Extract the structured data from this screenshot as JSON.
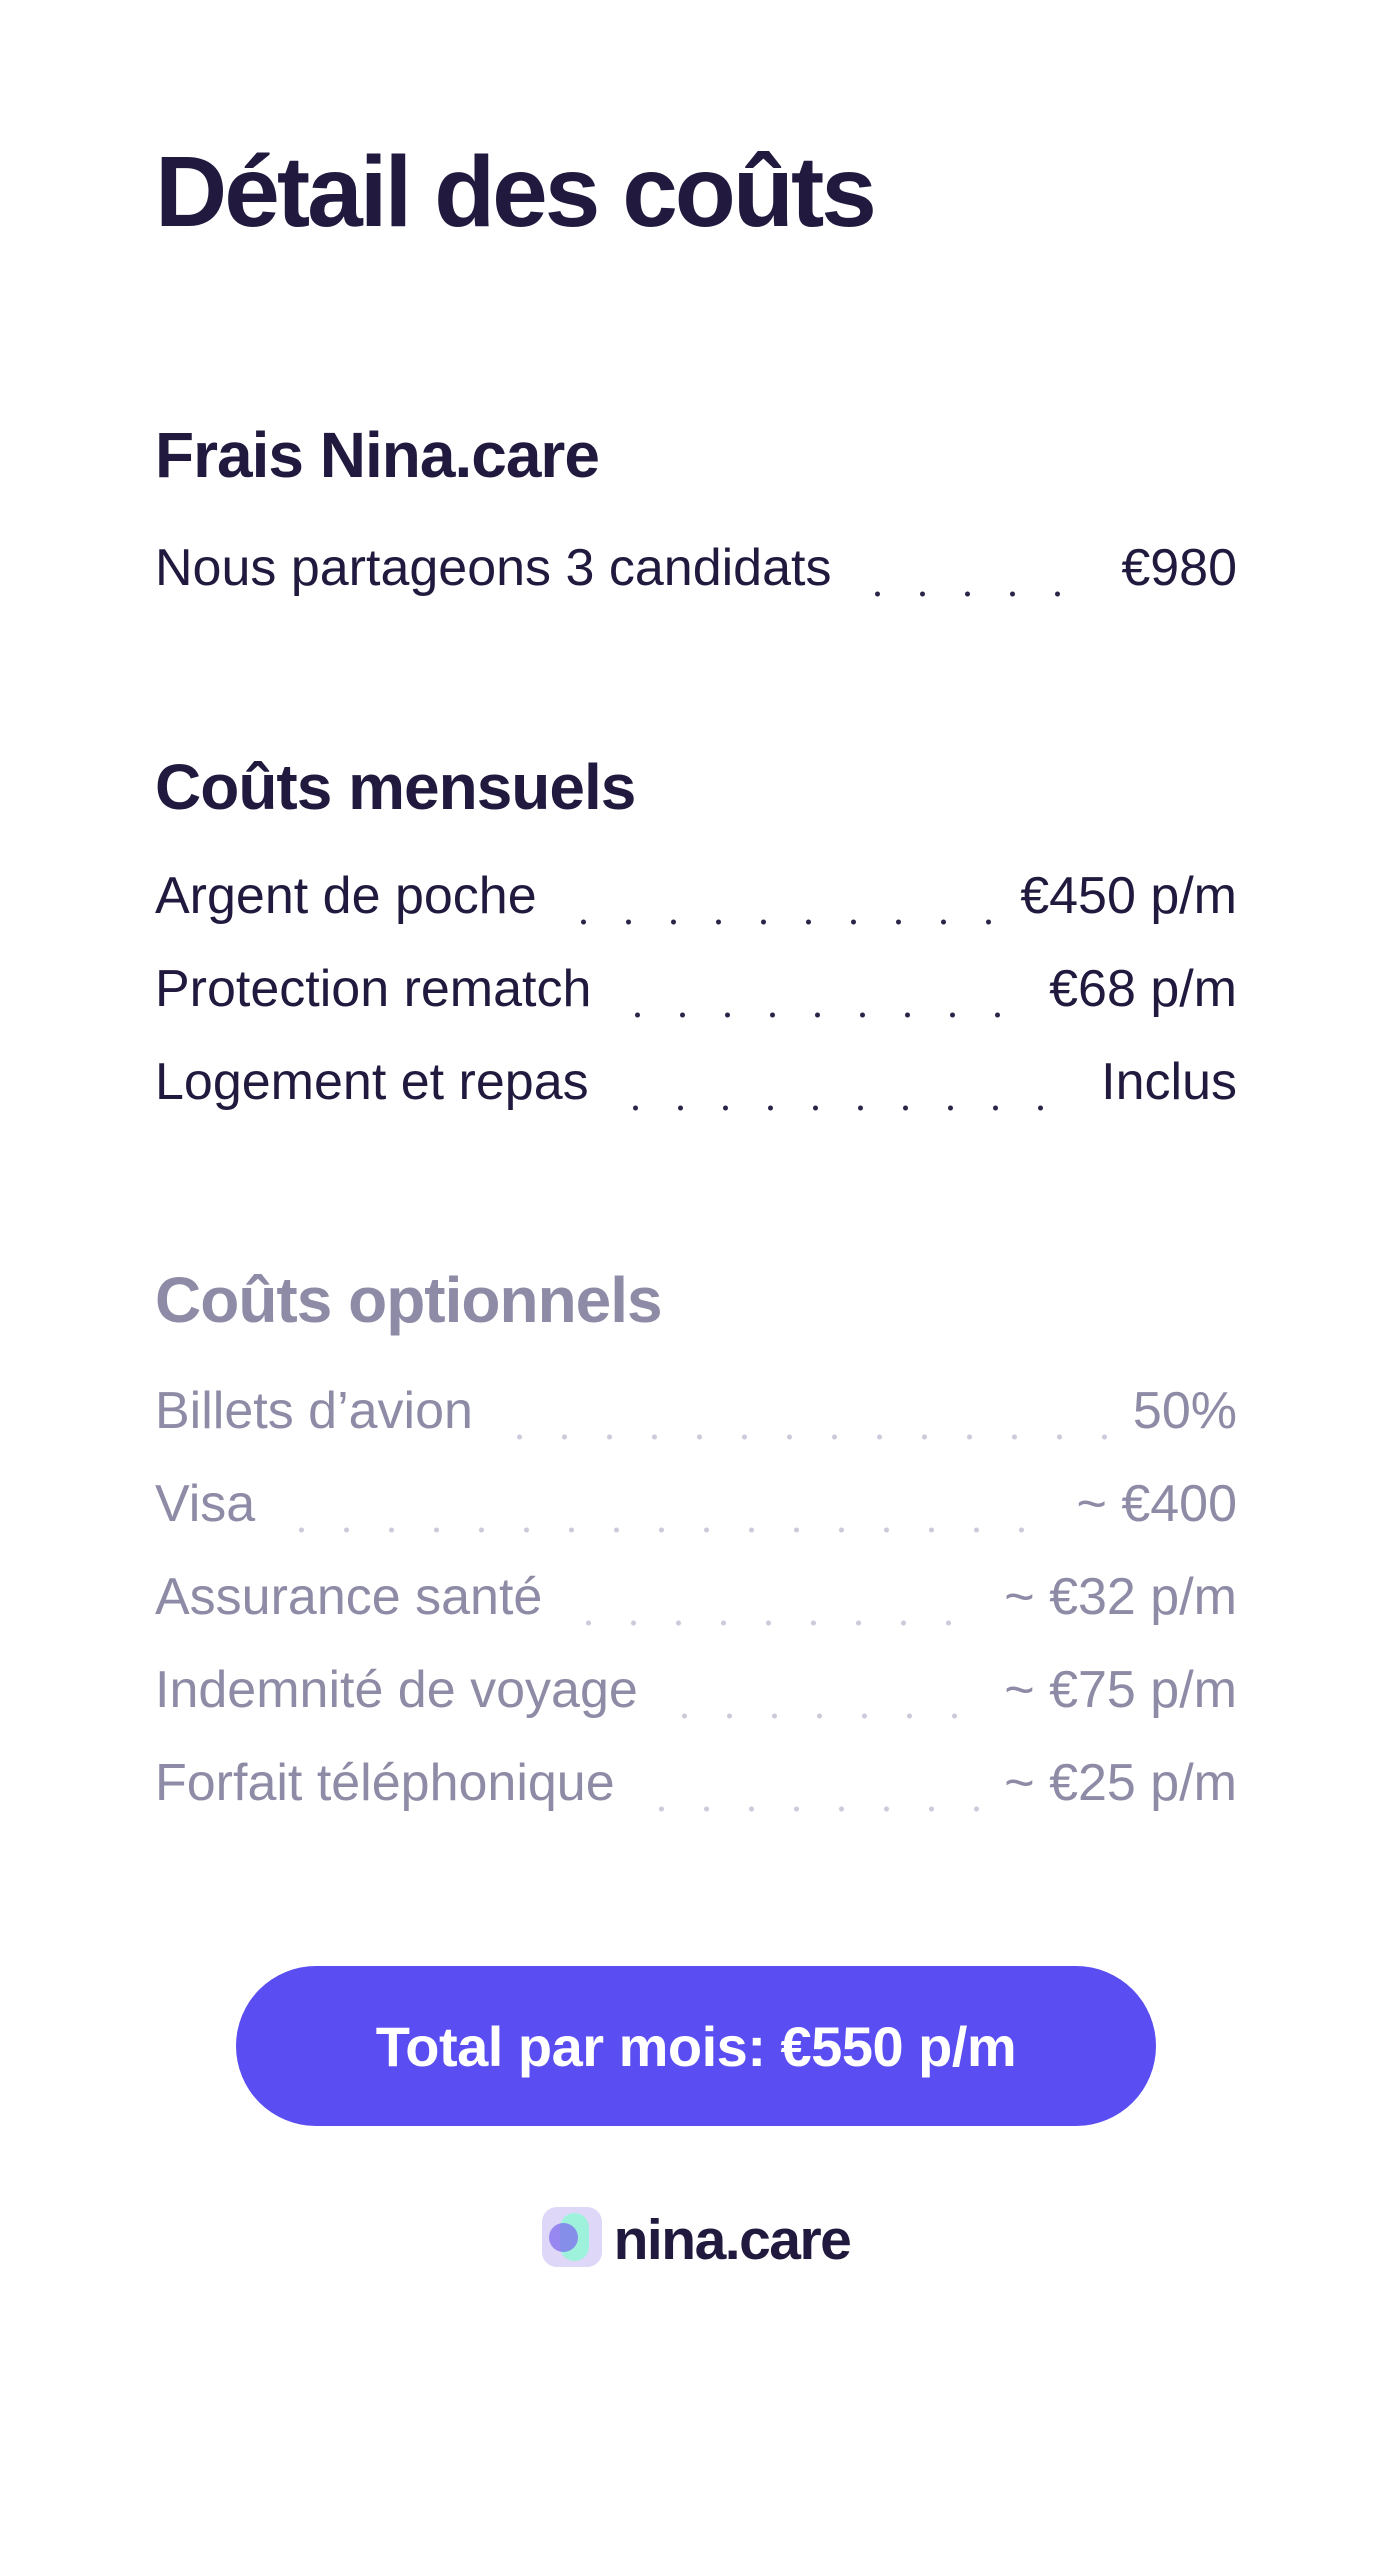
{
  "page": {
    "title": "Détail des coûts"
  },
  "colors": {
    "text_dark": "#221a3e",
    "text_muted": "#8d8ba5",
    "leader_dark": "#2b2449",
    "leader_muted": "#ccc9db",
    "accent_button": "#5a4df1",
    "button_text": "#ffffff",
    "logo_square": "#ded7f8",
    "logo_pill": "#9ef2dc",
    "logo_circle": "#7c68ee"
  },
  "sections": [
    {
      "heading": "Frais Nina.care",
      "muted": false,
      "rows": [
        {
          "label": "Nous partageons 3 candidats",
          "value": "€980"
        }
      ]
    },
    {
      "heading": "Coûts mensuels",
      "muted": false,
      "rows": [
        {
          "label": "Argent de poche",
          "value": "€450 p/m"
        },
        {
          "label": "Protection rematch",
          "value": "€68 p/m"
        },
        {
          "label": "Logement et repas",
          "value": "Inclus"
        }
      ]
    },
    {
      "heading": "Coûts optionnels",
      "muted": true,
      "rows": [
        {
          "label": "Billets d’avion",
          "value": "50%"
        },
        {
          "label": "Visa",
          "value": "~ €400"
        },
        {
          "label": "Assurance santé",
          "value": "~ €32 p/m"
        },
        {
          "label": "Indemnité de voyage",
          "value": "~ €75 p/m"
        },
        {
          "label": "Forfait téléphonique",
          "value": "~ €25 p/m"
        }
      ]
    }
  ],
  "total_button": {
    "label": "Total par mois: €550 p/m"
  },
  "footer": {
    "brand": "nina.care",
    "logo_icon": "nina-care-mark"
  }
}
